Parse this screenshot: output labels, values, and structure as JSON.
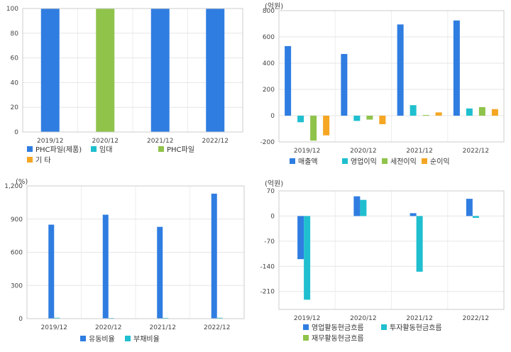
{
  "chart_data": [
    {
      "type": "bar",
      "categories": [
        "2019/12",
        "2020/12",
        "2021/12",
        "2022/12"
      ],
      "series": [
        {
          "name": "PHC파일(제품)",
          "color": "#2f7de1",
          "values": [
            100,
            0,
            100,
            100
          ]
        },
        {
          "name": "임대",
          "color": "#1fbfcf",
          "values": [
            0,
            0,
            0,
            0
          ]
        },
        {
          "name": "PHC파일",
          "color": "#8fc34a",
          "values": [
            0,
            100,
            0,
            0
          ]
        },
        {
          "name": "기 타",
          "color": "#f5a623",
          "values": [
            0,
            0,
            0,
            0
          ]
        }
      ],
      "stacked": true,
      "ylim": [
        0,
        100
      ],
      "yticks": [
        "0",
        "20",
        "40",
        "60",
        "80",
        "100"
      ],
      "unit": "",
      "grid": true,
      "legend": "bottom"
    },
    {
      "type": "bar",
      "categories": [
        "2019/12",
        "2020/12",
        "2021/12",
        "2022/12"
      ],
      "series": [
        {
          "name": "매출액",
          "color": "#2f7de1",
          "values": [
            530,
            470,
            695,
            725
          ]
        },
        {
          "name": "영업이익",
          "color": "#1fbfcf",
          "values": [
            -50,
            -40,
            80,
            55
          ]
        },
        {
          "name": "세전이익",
          "color": "#8fc34a",
          "values": [
            -190,
            -30,
            5,
            65
          ]
        },
        {
          "name": "순이익",
          "color": "#f5a623",
          "values": [
            -150,
            -65,
            25,
            50
          ]
        }
      ],
      "ylim": [
        -200,
        800
      ],
      "yticks": [
        "-200",
        "0",
        "200",
        "400",
        "600",
        "800"
      ],
      "unit": "(억원)",
      "grid": true,
      "legend": "bottom"
    },
    {
      "type": "bar",
      "categories": [
        "2019/12",
        "2020/12",
        "2021/12",
        "2022/12"
      ],
      "series": [
        {
          "name": "유동비율",
          "color": "#2f7de1",
          "values": [
            850,
            940,
            830,
            1130
          ]
        },
        {
          "name": "부채비율",
          "color": "#1fbfcf",
          "values": [
            8,
            6,
            7,
            8
          ]
        }
      ],
      "ylim": [
        0,
        1200
      ],
      "yticks": [
        "0",
        "300",
        "600",
        "900",
        "1,200"
      ],
      "unit": "(%)",
      "grid": true,
      "legend": "bottom"
    },
    {
      "type": "bar",
      "categories": [
        "2019/12",
        "2020/12",
        "2021/12",
        "2022/12"
      ],
      "series": [
        {
          "name": "영업활동현금흐름",
          "color": "#2f7de1",
          "values": [
            -120,
            55,
            8,
            48
          ]
        },
        {
          "name": "투자활동현금흐름",
          "color": "#1fbfcf",
          "values": [
            -233,
            45,
            -155,
            -5
          ]
        },
        {
          "name": "재무활동현금흐름",
          "color": "#8fc34a",
          "values": [
            0,
            0,
            0,
            0
          ]
        }
      ],
      "ylim": [
        -260,
        70
      ],
      "yticks": [
        "-210",
        "-140",
        "-70",
        "0",
        "70"
      ],
      "unit": "(억원)",
      "grid": true,
      "legend": "bottom"
    }
  ]
}
